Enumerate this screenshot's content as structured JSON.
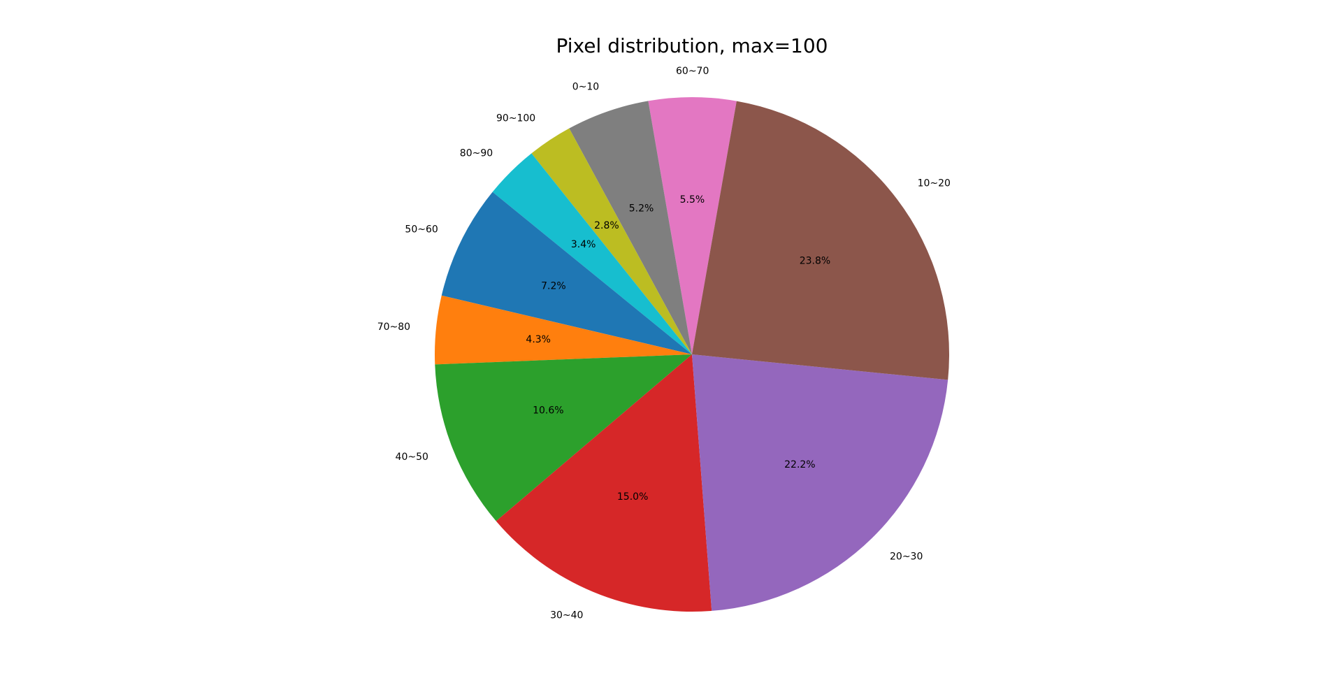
{
  "chart_data": {
    "type": "pie",
    "title": "Pixel distribution, max=100",
    "start_angle_deg": 80,
    "direction": "counterclockwise",
    "slices": [
      {
        "label": "60~70",
        "value": 5.5,
        "pct_label": "5.5%",
        "color": "#e377c2"
      },
      {
        "label": "0~10",
        "value": 5.2,
        "pct_label": "5.2%",
        "color": "#7f7f7f"
      },
      {
        "label": "90~100",
        "value": 2.8,
        "pct_label": "2.8%",
        "color": "#bcbd22"
      },
      {
        "label": "80~90",
        "value": 3.4,
        "pct_label": "3.4%",
        "color": "#17becf"
      },
      {
        "label": "50~60",
        "value": 7.2,
        "pct_label": "7.2%",
        "color": "#1f77b4"
      },
      {
        "label": "70~80",
        "value": 4.3,
        "pct_label": "4.3%",
        "color": "#ff7f0e"
      },
      {
        "label": "40~50",
        "value": 10.6,
        "pct_label": "10.6%",
        "color": "#2ca02c"
      },
      {
        "label": "30~40",
        "value": 15.0,
        "pct_label": "15.0%",
        "color": "#d62728"
      },
      {
        "label": "20~30",
        "value": 22.2,
        "pct_label": "22.2%",
        "color": "#9467bd"
      },
      {
        "label": "10~20",
        "value": 23.8,
        "pct_label": "23.8%",
        "color": "#8c564b"
      }
    ]
  }
}
